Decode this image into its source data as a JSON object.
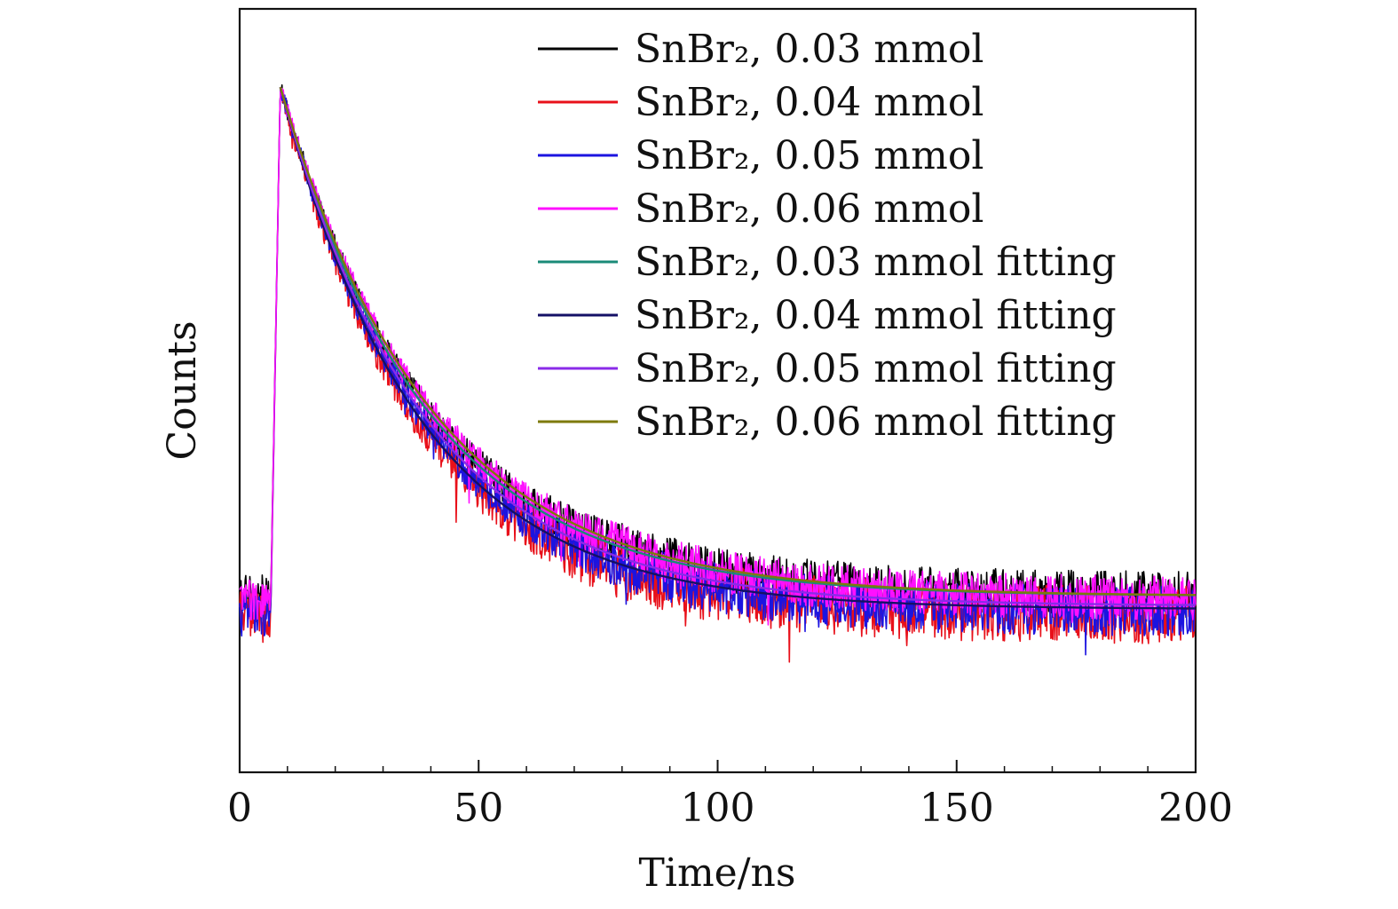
{
  "chart_data": {
    "type": "line",
    "title": "",
    "xlabel": "Time/ns",
    "ylabel": "Counts",
    "xlim": [
      0,
      200
    ],
    "ylim": [
      -0.05,
      1.12
    ],
    "x_ticks": [
      "0",
      "50",
      "100",
      "150",
      "200"
    ],
    "y_ticks": [],
    "grid": false,
    "legend_position": "top-right",
    "pulse_rise_time": 6.5,
    "peak_time": 8.5,
    "series": [
      {
        "name": "SnBr₂, 0.03 mmol",
        "color": "#000000",
        "kind": "measured",
        "tau": 30.5,
        "baseline": 0.22,
        "noise": 0.028
      },
      {
        "name": "SnBr₂, 0.04 mmol",
        "color": "#e8101a",
        "kind": "measured",
        "tau": 29.0,
        "baseline": 0.19,
        "noise": 0.034
      },
      {
        "name": "SnBr₂, 0.05 mmol",
        "color": "#1c14e0",
        "kind": "measured",
        "tau": 30.0,
        "baseline": 0.195,
        "noise": 0.03
      },
      {
        "name": "SnBr₂, 0.06 mmol",
        "color": "#ff10ff",
        "kind": "measured",
        "tau": 31.5,
        "baseline": 0.215,
        "noise": 0.026
      },
      {
        "name": "SnBr₂, 0.03 mmol fitting",
        "color": "#1a8a78",
        "kind": "fitting",
        "tau": 30.5,
        "baseline": 0.22
      },
      {
        "name": "SnBr₂, 0.04 mmol fitting",
        "color": "#141066",
        "kind": "fitting",
        "tau": 29.0,
        "baseline": 0.2
      },
      {
        "name": "SnBr₂, 0.05 mmol fitting",
        "color": "#8a2be8",
        "kind": "fitting",
        "tau": 30.0,
        "baseline": 0.205
      },
      {
        "name": "SnBr₂, 0.06 mmol fitting",
        "color": "#7d7a0a",
        "kind": "fitting",
        "tau": 31.5,
        "baseline": 0.22
      }
    ]
  }
}
